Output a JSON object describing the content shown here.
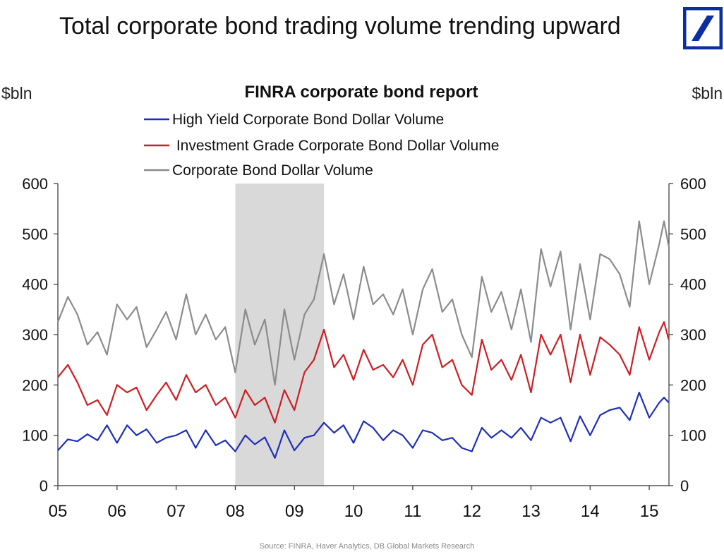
{
  "headline": "Total corporate bond trading volume trending upward",
  "logo_icon": "deutsche-bank-slash-logo-icon",
  "colors": {
    "logo": "#0b2f9f",
    "high_yield": "#1f2fb8",
    "investment_grade": "#cc1f24",
    "total": "#8c8c8c",
    "recession_shade": "#d9d9d9",
    "axis": "#333333"
  },
  "chart_data": {
    "type": "line",
    "title": "FINRA corporate bond report",
    "ylabel_left": "$bln",
    "ylabel_right": "$bln",
    "ylim": [
      0,
      600
    ],
    "yticks": [
      0,
      100,
      200,
      300,
      400,
      500,
      600
    ],
    "xlim": [
      2005,
      2015.333
    ],
    "x_tick_labels": [
      "05",
      "06",
      "07",
      "08",
      "09",
      "10",
      "11",
      "12",
      "13",
      "14",
      "15"
    ],
    "legend_position": "top-center",
    "grid": false,
    "shaded_period": [
      2008.0,
      2009.5
    ],
    "source": "Source: FINRA, Haver Analytics, DB Global Markets Research",
    "series": [
      {
        "name": "High Yield Corporate Bond Dollar Volume",
        "color_key": "high_yield",
        "anchors": [
          [
            2005.0,
            70
          ],
          [
            2005.17,
            92
          ],
          [
            2005.33,
            88
          ],
          [
            2005.5,
            102
          ],
          [
            2005.67,
            90
          ],
          [
            2005.83,
            120
          ],
          [
            2006.0,
            85
          ],
          [
            2006.17,
            120
          ],
          [
            2006.33,
            100
          ],
          [
            2006.5,
            112
          ],
          [
            2006.67,
            85
          ],
          [
            2006.83,
            95
          ],
          [
            2007.0,
            100
          ],
          [
            2007.17,
            110
          ],
          [
            2007.33,
            75
          ],
          [
            2007.5,
            110
          ],
          [
            2007.67,
            80
          ],
          [
            2007.83,
            90
          ],
          [
            2008.0,
            68
          ],
          [
            2008.17,
            100
          ],
          [
            2008.33,
            82
          ],
          [
            2008.5,
            96
          ],
          [
            2008.67,
            55
          ],
          [
            2008.83,
            110
          ],
          [
            2009.0,
            70
          ],
          [
            2009.17,
            95
          ],
          [
            2009.33,
            100
          ],
          [
            2009.5,
            125
          ],
          [
            2009.67,
            105
          ],
          [
            2009.83,
            120
          ],
          [
            2010.0,
            85
          ],
          [
            2010.17,
            128
          ],
          [
            2010.33,
            115
          ],
          [
            2010.5,
            90
          ],
          [
            2010.67,
            110
          ],
          [
            2010.83,
            100
          ],
          [
            2011.0,
            75
          ],
          [
            2011.17,
            110
          ],
          [
            2011.33,
            105
          ],
          [
            2011.5,
            90
          ],
          [
            2011.67,
            95
          ],
          [
            2011.83,
            75
          ],
          [
            2012.0,
            68
          ],
          [
            2012.17,
            115
          ],
          [
            2012.33,
            95
          ],
          [
            2012.5,
            110
          ],
          [
            2012.67,
            95
          ],
          [
            2012.83,
            115
          ],
          [
            2013.0,
            90
          ],
          [
            2013.17,
            135
          ],
          [
            2013.33,
            125
          ],
          [
            2013.5,
            135
          ],
          [
            2013.67,
            88
          ],
          [
            2013.83,
            138
          ],
          [
            2014.0,
            100
          ],
          [
            2014.17,
            140
          ],
          [
            2014.33,
            150
          ],
          [
            2014.5,
            155
          ],
          [
            2014.67,
            130
          ],
          [
            2014.83,
            185
          ],
          [
            2015.0,
            135
          ],
          [
            2015.17,
            165
          ],
          [
            2015.25,
            175
          ],
          [
            2015.33,
            165
          ]
        ]
      },
      {
        "name": " Investment Grade Corporate Bond Dollar Volume",
        "color_key": "investment_grade",
        "anchors": [
          [
            2005.0,
            215
          ],
          [
            2005.17,
            240
          ],
          [
            2005.33,
            205
          ],
          [
            2005.5,
            160
          ],
          [
            2005.67,
            170
          ],
          [
            2005.83,
            140
          ],
          [
            2006.0,
            200
          ],
          [
            2006.17,
            185
          ],
          [
            2006.33,
            195
          ],
          [
            2006.5,
            150
          ],
          [
            2006.67,
            180
          ],
          [
            2006.83,
            205
          ],
          [
            2007.0,
            170
          ],
          [
            2007.17,
            220
          ],
          [
            2007.33,
            185
          ],
          [
            2007.5,
            200
          ],
          [
            2007.67,
            160
          ],
          [
            2007.83,
            175
          ],
          [
            2008.0,
            135
          ],
          [
            2008.17,
            190
          ],
          [
            2008.33,
            160
          ],
          [
            2008.5,
            175
          ],
          [
            2008.67,
            125
          ],
          [
            2008.83,
            190
          ],
          [
            2009.0,
            150
          ],
          [
            2009.17,
            225
          ],
          [
            2009.33,
            250
          ],
          [
            2009.5,
            310
          ],
          [
            2009.67,
            235
          ],
          [
            2009.83,
            260
          ],
          [
            2010.0,
            210
          ],
          [
            2010.17,
            270
          ],
          [
            2010.33,
            230
          ],
          [
            2010.5,
            240
          ],
          [
            2010.67,
            215
          ],
          [
            2010.83,
            250
          ],
          [
            2011.0,
            200
          ],
          [
            2011.17,
            280
          ],
          [
            2011.33,
            300
          ],
          [
            2011.5,
            235
          ],
          [
            2011.67,
            250
          ],
          [
            2011.83,
            200
          ],
          [
            2012.0,
            180
          ],
          [
            2012.17,
            290
          ],
          [
            2012.33,
            230
          ],
          [
            2012.5,
            250
          ],
          [
            2012.67,
            210
          ],
          [
            2012.83,
            260
          ],
          [
            2013.0,
            185
          ],
          [
            2013.17,
            300
          ],
          [
            2013.33,
            260
          ],
          [
            2013.5,
            300
          ],
          [
            2013.67,
            205
          ],
          [
            2013.83,
            300
          ],
          [
            2014.0,
            220
          ],
          [
            2014.17,
            295
          ],
          [
            2014.33,
            280
          ],
          [
            2014.5,
            260
          ],
          [
            2014.67,
            220
          ],
          [
            2014.83,
            315
          ],
          [
            2015.0,
            250
          ],
          [
            2015.17,
            305
          ],
          [
            2015.25,
            325
          ],
          [
            2015.33,
            290
          ]
        ]
      },
      {
        "name": "Corporate Bond Dollar Volume",
        "color_key": "total",
        "anchors": [
          [
            2005.0,
            325
          ],
          [
            2005.17,
            375
          ],
          [
            2005.33,
            340
          ],
          [
            2005.5,
            280
          ],
          [
            2005.67,
            305
          ],
          [
            2005.83,
            260
          ],
          [
            2006.0,
            360
          ],
          [
            2006.17,
            330
          ],
          [
            2006.33,
            355
          ],
          [
            2006.5,
            275
          ],
          [
            2006.67,
            310
          ],
          [
            2006.83,
            345
          ],
          [
            2007.0,
            290
          ],
          [
            2007.17,
            380
          ],
          [
            2007.33,
            300
          ],
          [
            2007.5,
            340
          ],
          [
            2007.67,
            290
          ],
          [
            2007.83,
            315
          ],
          [
            2008.0,
            225
          ],
          [
            2008.17,
            350
          ],
          [
            2008.33,
            280
          ],
          [
            2008.5,
            330
          ],
          [
            2008.67,
            200
          ],
          [
            2008.83,
            350
          ],
          [
            2009.0,
            250
          ],
          [
            2009.17,
            340
          ],
          [
            2009.33,
            370
          ],
          [
            2009.5,
            460
          ],
          [
            2009.67,
            360
          ],
          [
            2009.83,
            420
          ],
          [
            2010.0,
            330
          ],
          [
            2010.17,
            435
          ],
          [
            2010.33,
            360
          ],
          [
            2010.5,
            380
          ],
          [
            2010.67,
            340
          ],
          [
            2010.83,
            390
          ],
          [
            2011.0,
            300
          ],
          [
            2011.17,
            390
          ],
          [
            2011.33,
            430
          ],
          [
            2011.5,
            345
          ],
          [
            2011.67,
            370
          ],
          [
            2011.83,
            300
          ],
          [
            2012.0,
            255
          ],
          [
            2012.17,
            415
          ],
          [
            2012.33,
            345
          ],
          [
            2012.5,
            385
          ],
          [
            2012.67,
            310
          ],
          [
            2012.83,
            390
          ],
          [
            2013.0,
            285
          ],
          [
            2013.17,
            470
          ],
          [
            2013.33,
            395
          ],
          [
            2013.5,
            465
          ],
          [
            2013.67,
            310
          ],
          [
            2013.83,
            440
          ],
          [
            2014.0,
            330
          ],
          [
            2014.17,
            460
          ],
          [
            2014.33,
            450
          ],
          [
            2014.5,
            420
          ],
          [
            2014.67,
            355
          ],
          [
            2014.83,
            525
          ],
          [
            2015.0,
            400
          ],
          [
            2015.17,
            480
          ],
          [
            2015.25,
            525
          ],
          [
            2015.33,
            475
          ]
        ]
      }
    ]
  }
}
